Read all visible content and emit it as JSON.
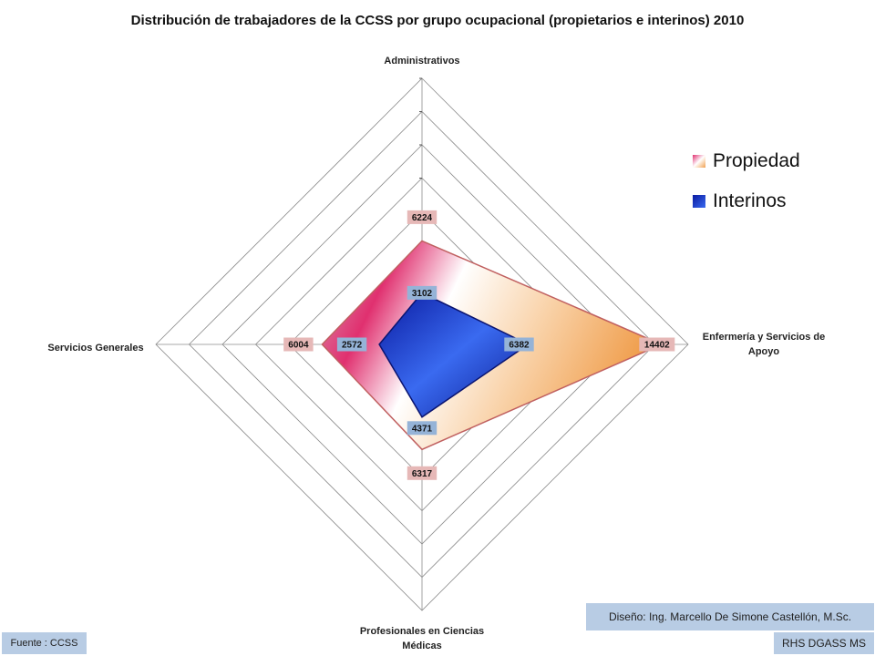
{
  "chart_data": {
    "type": "radar",
    "title": "Distribución de trabajadores de la CCSS por grupo ocupacional (propietarios e interinos) 2010",
    "axes": [
      {
        "label": [
          "Administrativos"
        ]
      },
      {
        "label": [
          "Enfermería y Servicios de",
          "Apoyo"
        ]
      },
      {
        "label": [
          "Profesionales en Ciencias",
          "Médicas"
        ]
      },
      {
        "label": [
          "Servicios Generales"
        ]
      }
    ],
    "series": [
      {
        "name": "Propiedad",
        "values": [
          6224,
          14402,
          6317,
          6004
        ],
        "color": "#f4b183"
      },
      {
        "name": "Interinos",
        "values": [
          3102,
          6382,
          4371,
          2572
        ],
        "color": "#1f2fbf"
      }
    ],
    "rmax": 16000,
    "rings": 8,
    "legend_position": "right"
  },
  "footer": {
    "credit": "Diseño: Ing. Marcello De Simone Castellón, M.Sc.",
    "org": "RHS DGASS MS",
    "source": "Fuente : CCSS"
  }
}
